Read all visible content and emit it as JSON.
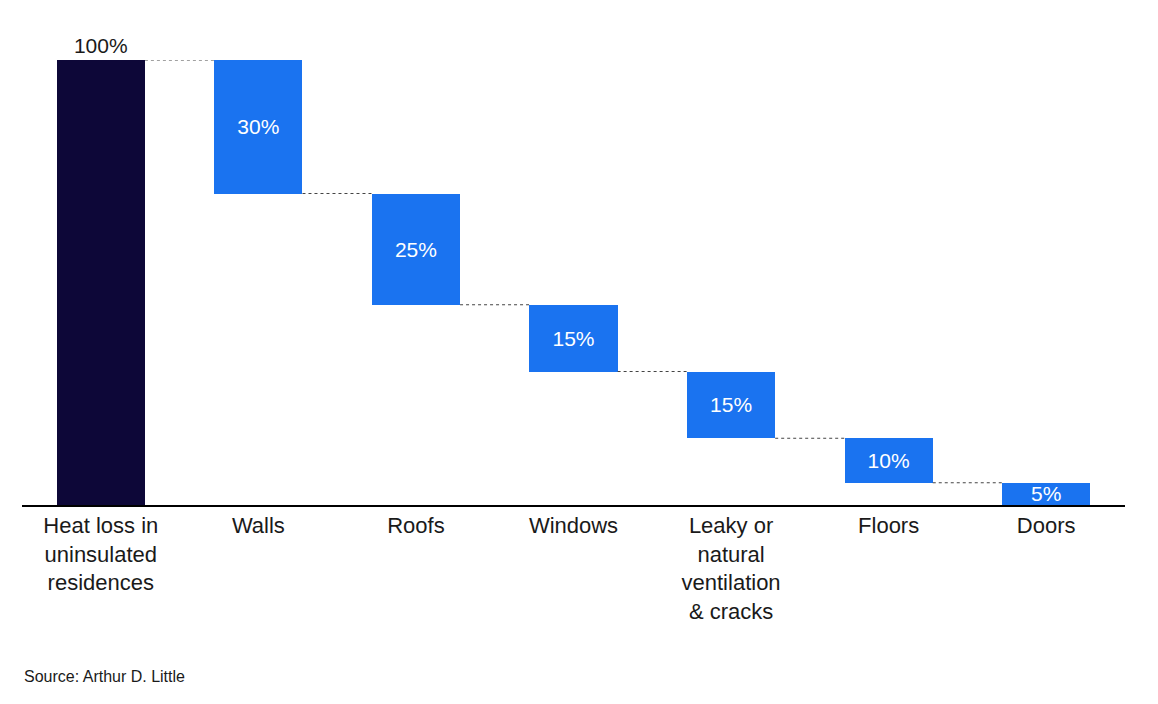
{
  "chart_data": {
    "type": "waterfall",
    "categories": [
      "Heat loss in uninsulated residences",
      "Walls",
      "Roofs",
      "Windows",
      "Leaky or natural ventilation & cracks",
      "Floors",
      "Doors"
    ],
    "values": [
      100,
      30,
      25,
      15,
      15,
      10,
      5
    ],
    "value_labels": [
      "100%",
      "30%",
      "25%",
      "15%",
      "15%",
      "10%",
      "5%"
    ],
    "colors": [
      "#0d0738",
      "#1a73f0",
      "#1a73f0",
      "#1a73f0",
      "#1a73f0",
      "#1a73f0",
      "#1a73f0"
    ],
    "ylim": [
      0,
      100
    ],
    "data_labels": true,
    "tick_labels": "x",
    "grid": false,
    "source": "Source: Arthur D. Little"
  }
}
